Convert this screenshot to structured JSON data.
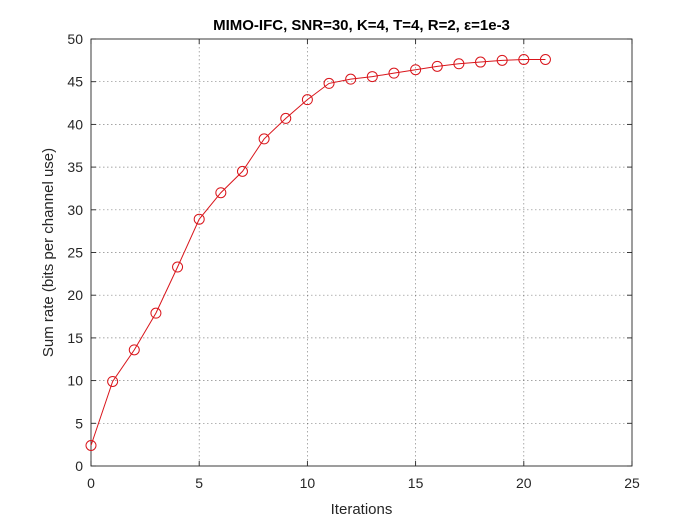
{
  "chart_data": {
    "type": "line",
    "title": "MIMO-IFC, SNR=30, K=4, T=4, R=2, ε=1e-3",
    "xlabel": "Iterations",
    "ylabel": "Sum rate (bits per channel use)",
    "xlim": [
      0,
      25
    ],
    "ylim": [
      0,
      50
    ],
    "xticks": [
      "0",
      "5",
      "10",
      "15",
      "20",
      "25"
    ],
    "yticks": [
      "0",
      "5",
      "10",
      "15",
      "20",
      "25",
      "30",
      "35",
      "40",
      "45",
      "50"
    ],
    "grid": true,
    "series": [
      {
        "x": [
          0,
          1,
          2,
          3,
          4,
          5,
          6,
          7,
          8,
          9,
          10,
          11,
          12,
          13,
          14,
          15,
          16,
          17,
          18,
          19,
          20,
          21
        ],
        "values": [
          2.4,
          9.9,
          13.6,
          17.9,
          23.3,
          28.9,
          32.0,
          34.5,
          38.3,
          40.7,
          42.9,
          44.8,
          45.3,
          45.6,
          46.0,
          46.4,
          46.8,
          47.1,
          47.3,
          47.5,
          47.6,
          47.6
        ],
        "color": "#d9151b",
        "marker": "circle"
      }
    ]
  }
}
